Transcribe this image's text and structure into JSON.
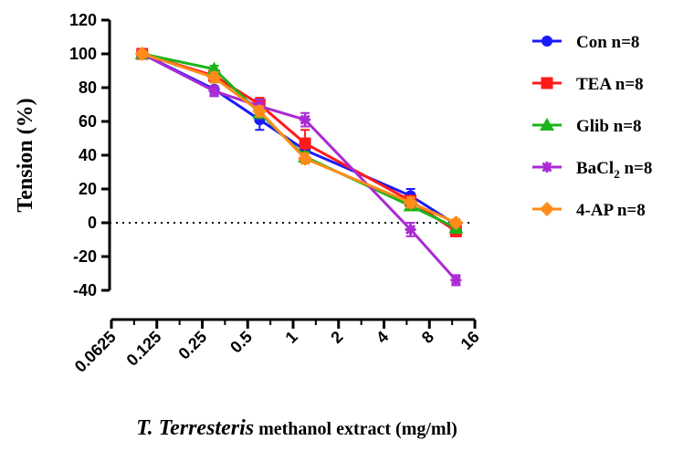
{
  "chart_data": {
    "type": "line",
    "xscale": "log2",
    "x_ticks": [
      "0.0625",
      "0.125",
      "0.25",
      "0.5",
      "1",
      "2",
      "4",
      "8",
      "16"
    ],
    "x_tick_values": [
      0.0625,
      0.125,
      0.25,
      0.5,
      1,
      2,
      4,
      8,
      16
    ],
    "y_ticks": [
      "-40",
      "-20",
      "0",
      "20",
      "40",
      "60",
      "80",
      "100",
      "120"
    ],
    "ylim": [
      -40,
      120
    ],
    "xlim": [
      0.0625,
      16
    ],
    "xlabel_italic": "T. Terresteris",
    "xlabel_rest": " methanol extract (mg/ml)",
    "ylabel": "Tension (%)",
    "zero_line": true,
    "legend_position": "right",
    "x": [
      0.1,
      0.3,
      0.6,
      1.2,
      6,
      12
    ],
    "series": [
      {
        "name": "Con n=8",
        "legend_main": "Con n=8",
        "color": "#1a1aff",
        "marker": "circle",
        "values": [
          100,
          79,
          61,
          43,
          16,
          -1
        ],
        "errors": [
          2,
          4,
          6,
          4,
          4,
          2
        ]
      },
      {
        "name": "TEA n=8",
        "legend_main": "TEA n=8",
        "color": "#ff1a1a",
        "marker": "square",
        "values": [
          100,
          87,
          70,
          47,
          13,
          -5
        ],
        "errors": [
          2,
          3,
          4,
          8,
          3,
          3
        ]
      },
      {
        "name": "Glib n=8",
        "legend_main": "Glib n=8",
        "color": "#1ab41a",
        "marker": "triangle",
        "values": [
          100,
          91,
          65,
          39,
          10,
          -3
        ],
        "errors": [
          2,
          2,
          3,
          3,
          2,
          3
        ]
      },
      {
        "name": "BaCl2 n=8",
        "legend_main": "BaCl",
        "legend_sub": "2",
        "legend_tail": " n=8",
        "color": "#aa2ad4",
        "marker": "star",
        "values": [
          100,
          78,
          69,
          61,
          -4,
          -34
        ],
        "errors": [
          2,
          3,
          4,
          4,
          4,
          3
        ]
      },
      {
        "name": "4-AP n=8",
        "legend_main": "4-AP n=8",
        "color": "#ff8c1a",
        "marker": "diamond",
        "values": [
          100,
          86,
          66,
          38,
          12,
          0
        ],
        "errors": [
          2,
          3,
          3,
          3,
          3,
          2
        ]
      }
    ]
  }
}
